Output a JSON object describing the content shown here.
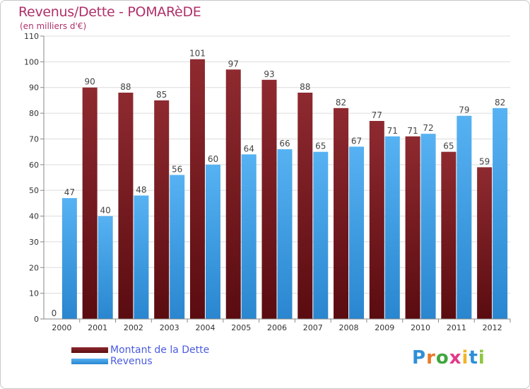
{
  "title": "Revenus/Dette - POMARèDE",
  "subtitle": "(en milliers d'€)",
  "logo": {
    "letters": [
      {
        "ch": "P",
        "color": "#2f8fd8"
      },
      {
        "ch": "r",
        "color": "#e8782a"
      },
      {
        "ch": "o",
        "color": "#3fa63f"
      },
      {
        "ch": "x",
        "color": "#e23b8a"
      },
      {
        "ch": "i",
        "color": "#f0b52a"
      },
      {
        "ch": "t",
        "color": "#2f8fd8"
      },
      {
        "ch": "i",
        "color": "#8cc63f"
      }
    ]
  },
  "chart_data": {
    "type": "bar",
    "title": "Revenus/Dette - POMARèDE",
    "subtitle": "(en milliers d'€)",
    "categories": [
      "2000",
      "2001",
      "2002",
      "2003",
      "2004",
      "2005",
      "2006",
      "2007",
      "2008",
      "2009",
      "2010",
      "2011",
      "2012"
    ],
    "series": [
      {
        "name": "Montant de la Dette",
        "color": "#7a1f24",
        "values": [
          0,
          90,
          88,
          85,
          101,
          97,
          93,
          88,
          82,
          77,
          71,
          65,
          59
        ]
      },
      {
        "name": "Revenus",
        "color": "#3c9ee6",
        "values": [
          47,
          40,
          48,
          56,
          60,
          64,
          66,
          65,
          67,
          71,
          72,
          79,
          82
        ]
      }
    ],
    "ylim": [
      0,
      110
    ],
    "yticks": [
      0,
      10,
      20,
      30,
      40,
      50,
      60,
      70,
      80,
      90,
      100,
      110
    ],
    "grid": true,
    "legend": "bottom-left"
  }
}
